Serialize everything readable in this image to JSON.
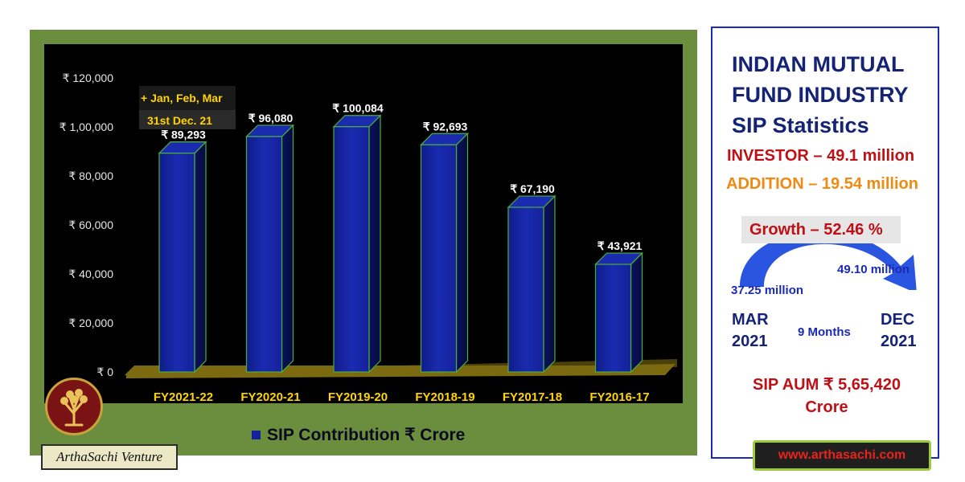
{
  "chart_data": {
    "type": "bar",
    "categories": [
      "FY2021-22",
      "FY2020-21",
      "FY2019-20",
      "FY2018-19",
      "FY2017-18",
      "FY2016-17"
    ],
    "values": [
      89293,
      96080,
      100084,
      92693,
      67190,
      43921
    ],
    "value_labels": [
      "₹ 89,293",
      "₹ 96,080",
      "₹ 100,084",
      "₹ 92,693",
      "₹ 67,190",
      "₹ 43,921"
    ],
    "y_tick_labels": [
      "₹ 0",
      "₹ 20,000",
      "₹ 40,000",
      "₹ 60,000",
      "₹ 80,000",
      "₹ 1,00,000",
      "₹ 120,000"
    ],
    "y_ticks": [
      0,
      20000,
      40000,
      60000,
      80000,
      100000,
      120000
    ],
    "ylim": [
      0,
      120000
    ],
    "legend": "SIP Contribution ₹ Crore",
    "legend_position": "bottom",
    "grid": false,
    "annotations": [
      "+ Jan, Feb, Mar",
      "31st Dec. 21"
    ],
    "colors": {
      "bar": "#14219a",
      "floor": "#7c6a10",
      "plot_bg": "#000000",
      "panel_bg": "#6a8e3e",
      "category_label": "#ffd400"
    }
  },
  "branding": {
    "name": "ArthaSachi Venture",
    "website": "www.arthasachi.com"
  },
  "info": {
    "title_lines": [
      "INDIAN MUTUAL",
      "FUND INDUSTRY",
      "SIP Statistics"
    ],
    "investor": "INVESTOR – 49.1 million",
    "addition": "ADDITION – 19.54 million",
    "growth": "Growth – 52.46 %",
    "end_value": "49.10 million",
    "start_value": "37.25 million",
    "start_month": "MAR",
    "start_year": "2021",
    "period": "9 Months",
    "end_month": "DEC",
    "end_year": "2021",
    "aum_line1": "SIP AUM ₹ 5,65,420",
    "aum_line2": "Crore"
  }
}
